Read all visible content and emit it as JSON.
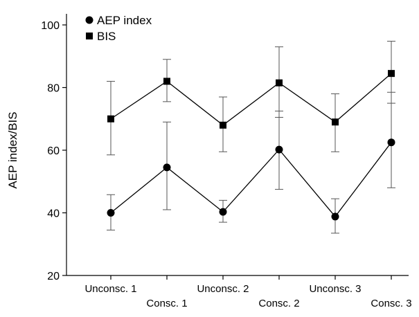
{
  "chart_data": {
    "type": "line",
    "title": "",
    "xlabel": "",
    "ylabel": "AEP index/BIS",
    "ylim": [
      20,
      100
    ],
    "yticks": [
      20,
      40,
      60,
      80,
      100
    ],
    "grid": false,
    "legend_position": "top-left",
    "categories": [
      "Unconsc. 1",
      "Consc. 1",
      "Unconsc. 2",
      "Consc. 2",
      "Unconsc. 3",
      "Consc. 3"
    ],
    "series": [
      {
        "name": "AEP index",
        "marker": "circle",
        "values": [
          40,
          54.5,
          40.3,
          60.2,
          38.8,
          62.5
        ],
        "error_low": [
          34.5,
          41,
          37,
          47.5,
          33.5,
          48
        ],
        "error_high": [
          45.8,
          69,
          44,
          72.5,
          44.5,
          78.5
        ]
      },
      {
        "name": "BIS",
        "marker": "square",
        "values": [
          70,
          82,
          68,
          81.5,
          69,
          84.5
        ],
        "error_low": [
          58.5,
          75.5,
          59.5,
          70.5,
          59.5,
          75
        ],
        "error_high": [
          82,
          89,
          77,
          93,
          78,
          94.8
        ]
      }
    ]
  }
}
